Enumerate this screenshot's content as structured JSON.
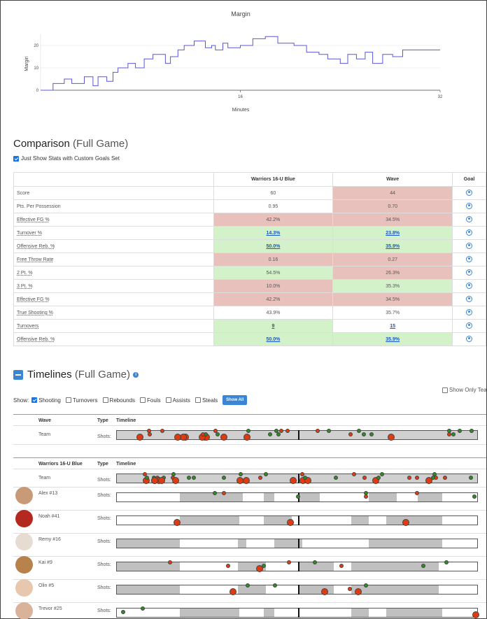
{
  "chart_data": {
    "type": "line",
    "title": "Margin",
    "xlabel": "Minutes",
    "ylabel": "Margin",
    "xlim": [
      0,
      32
    ],
    "ylim": [
      0,
      25
    ],
    "x_ticks": [
      "16",
      "32"
    ],
    "y_ticks": [
      "0",
      "10",
      "20"
    ],
    "color": "#5b57d6",
    "series": [
      {
        "x": [
          0,
          1,
          1,
          1.9,
          1.9,
          2.5,
          2.5,
          3.5,
          3.5,
          4.2,
          4.2,
          4.6,
          4.6,
          5.3,
          5.3,
          5.8,
          5.8,
          6.2,
          6.2,
          7,
          7,
          7.6,
          7.6,
          8.3,
          8.3,
          9,
          9,
          10,
          10,
          10.4,
          10.4,
          11,
          11,
          11.5,
          11.5,
          12.3,
          12.3,
          13.2,
          13.2,
          13.7,
          13.7,
          14,
          14,
          14.6,
          14.6,
          15,
          15,
          16,
          16,
          17,
          17,
          18,
          18,
          19,
          19,
          20.3,
          20.3,
          21.3,
          21.3,
          22.3,
          22.3,
          23,
          23,
          24,
          24,
          24.6,
          24.6,
          25.3,
          25.3,
          26,
          26,
          26.6,
          26.6,
          27.4,
          27.4,
          28.2,
          28.2,
          29,
          29,
          32
        ],
        "y": [
          0,
          0,
          3,
          3,
          5,
          5,
          3,
          3,
          6,
          6,
          2,
          2,
          6,
          6,
          4,
          4,
          8,
          8,
          10,
          10,
          12,
          12,
          10,
          10,
          14,
          14,
          16,
          16,
          12,
          12,
          15,
          15,
          18,
          18,
          20,
          20,
          22,
          22,
          19,
          19,
          20,
          20,
          18,
          18,
          21,
          21,
          19,
          19,
          20,
          20,
          23,
          23,
          24,
          24,
          21,
          21,
          20,
          20,
          17,
          17,
          16,
          16,
          14,
          14,
          12,
          12,
          16,
          16,
          14,
          14,
          17,
          17,
          12,
          12,
          16,
          16,
          15,
          15,
          18,
          18
        ]
      }
    ]
  },
  "comparison": {
    "title": "Comparison",
    "subtitle": "(Full Game)",
    "checkbox_label": "Just Show Stats with Custom Goals Set",
    "col_team1": "Warriors 16-U Blue",
    "col_team2": "Wave",
    "col_goal": "Goal",
    "rows": [
      {
        "label": "Score",
        "v1": "60",
        "v2": "44",
        "c1": "",
        "c2": "bad",
        "link": false,
        "u": false
      },
      {
        "label": "Pts. Per Possession",
        "v1": "0.95",
        "v2": "0.70",
        "c1": "",
        "c2": "bad",
        "link": false,
        "u": false
      },
      {
        "label": "Effective FG %",
        "v1": "42.2%",
        "v2": "34.5%",
        "c1": "bad",
        "c2": "bad",
        "link": false,
        "u": true
      },
      {
        "label": "Turnover %",
        "v1": "14.3%",
        "v2": "23.8%",
        "c1": "good",
        "c2": "good",
        "link": true,
        "u": true
      },
      {
        "label": "Offensive Reb. %",
        "v1": "50.0%",
        "v2": "35.9%",
        "c1": "good",
        "c2": "good",
        "link": true,
        "u": true
      },
      {
        "label": "Free Throw Rate",
        "v1": "0.16",
        "v2": "0.27",
        "c1": "bad",
        "c2": "bad",
        "link": false,
        "u": true
      },
      {
        "label": "2 Pt. %",
        "v1": "54.5%",
        "v2": "26.3%",
        "c1": "good",
        "c2": "bad",
        "link": false,
        "u": true
      },
      {
        "label": "3 Pt. %",
        "v1": "10.0%",
        "v2": "35.3%",
        "c1": "bad",
        "c2": "good",
        "link": false,
        "u": true
      },
      {
        "label": "Effective FG %",
        "v1": "42.2%",
        "v2": "34.5%",
        "c1": "bad",
        "c2": "bad",
        "link": false,
        "u": true
      },
      {
        "label": "True Shooting %",
        "v1": "43.9%",
        "v2": "35.7%",
        "c1": "",
        "c2": "",
        "link": false,
        "u": true
      },
      {
        "label": "Turnovers",
        "v1": "9",
        "v2": "15",
        "c1": "good",
        "c2": "",
        "link": true,
        "u": true
      },
      {
        "label": "Offensive Reb. %",
        "v1": "50.0%",
        "v2": "35.9%",
        "c1": "good",
        "c2": "good",
        "link": true,
        "u": true
      }
    ]
  },
  "timelines": {
    "title": "Timelines",
    "subtitle": "(Full Game)",
    "show_label": "Show:",
    "filters": [
      {
        "label": "Shooting",
        "checked": true
      },
      {
        "label": "Turnovers",
        "checked": false
      },
      {
        "label": "Rebounds",
        "checked": false
      },
      {
        "label": "Fouls",
        "checked": false
      },
      {
        "label": "Assists",
        "checked": false
      },
      {
        "label": "Steals",
        "checked": false
      }
    ],
    "show_all": "Show All",
    "show_only": "Show Only Team",
    "col_type": "Type",
    "col_timeline": "Timeline",
    "shots_label": "Shots:",
    "team_label": "Team",
    "opponent": "Wave",
    "home": "Warriors 16-U Blue",
    "players": [
      "Alex #13",
      "Noah #41",
      "Remy #16",
      "Kai #9",
      "Olin #5",
      "Trevor #25"
    ]
  }
}
